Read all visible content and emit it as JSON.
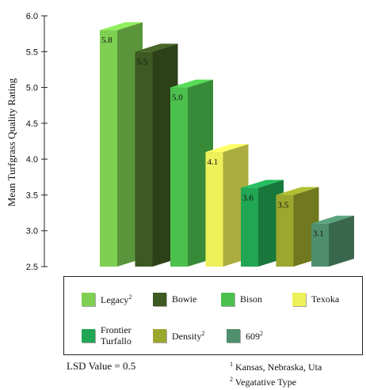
{
  "chart_data": {
    "type": "bar",
    "ylabel": "Mean Turfgrass Quality Rating",
    "ylim": [
      2.5,
      6.0
    ],
    "yticks": [
      "6.0",
      "5.5",
      "5.0",
      "4.5",
      "4.0",
      "3.5",
      "3.0",
      "2.5"
    ],
    "categories": [
      "Legacy",
      "Bowie",
      "Bison",
      "Texoka",
      "Frontier Turfallo",
      "Density",
      "609"
    ],
    "values": [
      5.8,
      5.5,
      5.0,
      4.1,
      3.6,
      3.5,
      3.1
    ],
    "value_labels": [
      "5.8",
      "5.5",
      "5.0",
      "4.1",
      "3.6",
      "3.5",
      "3.1"
    ],
    "colors": [
      "#7ecf52",
      "#3d5a22",
      "#4cc04c",
      "#eef05a",
      "#21a653",
      "#9ba72d",
      "#4f8f6d"
    ],
    "legend": [
      {
        "label": "Legacy",
        "sup": "2",
        "color": "#7ecf52"
      },
      {
        "label": "Bowie",
        "sup": "",
        "color": "#3d5a22"
      },
      {
        "label": "Bison",
        "sup": "",
        "color": "#4cc04c"
      },
      {
        "label": "Texoka",
        "sup": "",
        "color": "#eef05a"
      },
      {
        "label": "Frontier",
        "label2": "Turfallo",
        "sup": "",
        "color": "#21a653"
      },
      {
        "label": "Density",
        "sup": "2",
        "color": "#9ba72d"
      },
      {
        "label": "609",
        "sup": "2",
        "color": "#4f8f6d"
      }
    ],
    "grid": false,
    "style": "3d-bars"
  },
  "notes": {
    "lsd": "LSD Value = 0.5",
    "footnote1_mark": "1",
    "footnote1": "Kansas, Nebraska, Uta",
    "footnote2_mark": "2",
    "footnote2": "Vegatative Type"
  }
}
